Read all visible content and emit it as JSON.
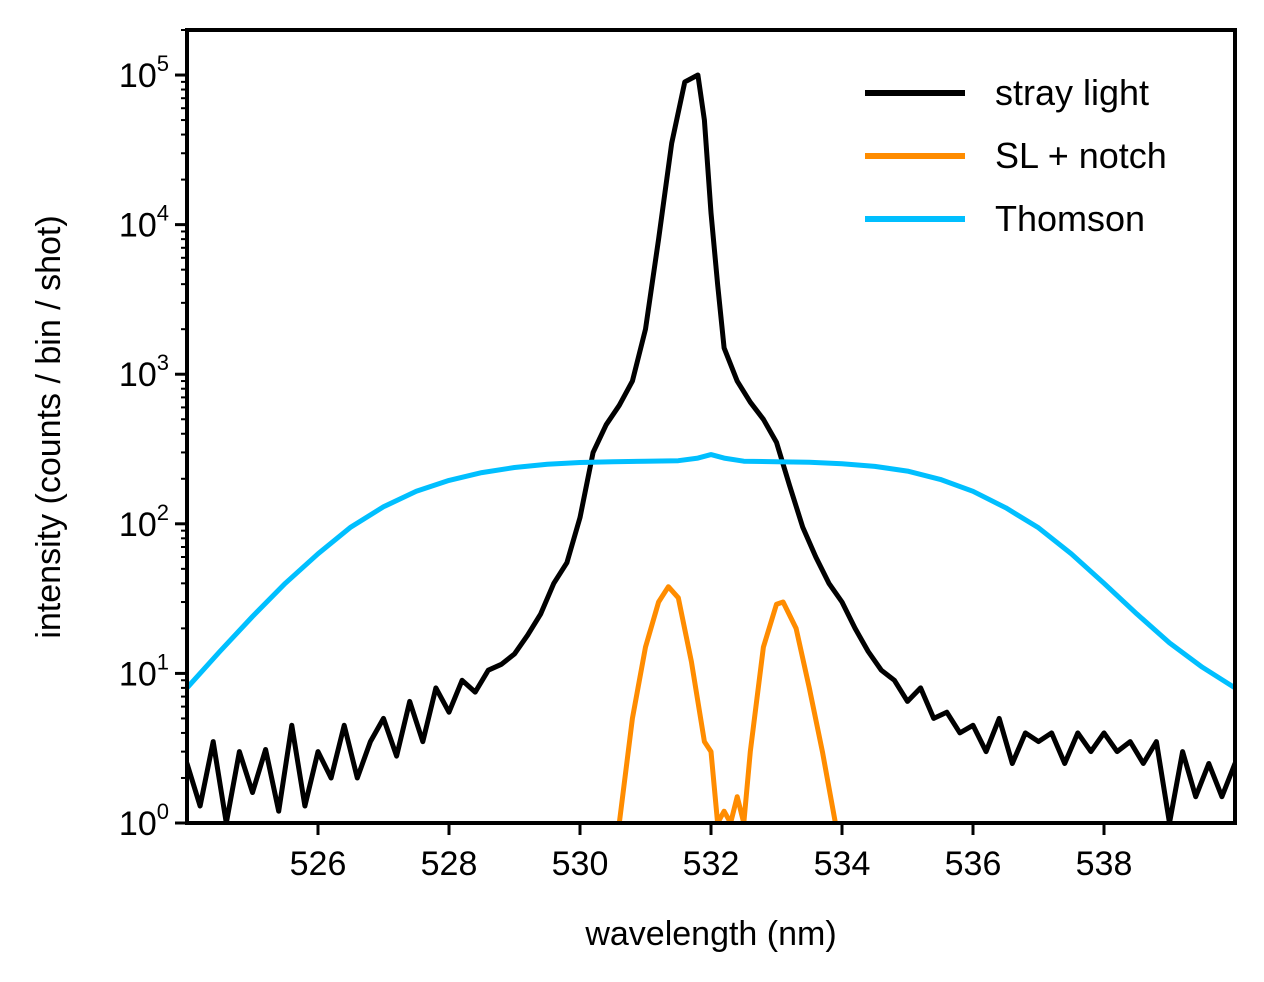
{
  "chart_data": {
    "type": "line",
    "title": "",
    "xlabel": "wavelength (nm)",
    "ylabel": "intensity (counts / bin / shot)",
    "xlim": [
      524.0,
      540.0
    ],
    "ylim": [
      1,
      200000
    ],
    "yscale": "log",
    "grid": false,
    "legend_position": "top-right",
    "xticks": [
      526,
      528,
      530,
      532,
      534,
      536,
      538
    ],
    "xtick_labels": [
      "526",
      "528",
      "530",
      "532",
      "534",
      "536",
      "538"
    ],
    "yticks": [
      1,
      10,
      100,
      1000,
      10000,
      100000
    ],
    "ytick_labels": [
      {
        "base": "10",
        "exp": "0"
      },
      {
        "base": "10",
        "exp": "1"
      },
      {
        "base": "10",
        "exp": "2"
      },
      {
        "base": "10",
        "exp": "3"
      },
      {
        "base": "10",
        "exp": "4"
      },
      {
        "base": "10",
        "exp": "5"
      }
    ],
    "series": [
      {
        "name": "stray light",
        "color": "#000000",
        "x": [
          524.0,
          524.2,
          524.4,
          524.6,
          524.8,
          525.0,
          525.2,
          525.4,
          525.6,
          525.8,
          526.0,
          526.2,
          526.4,
          526.6,
          526.8,
          527.0,
          527.2,
          527.4,
          527.6,
          527.8,
          528.0,
          528.2,
          528.4,
          528.6,
          528.8,
          529.0,
          529.2,
          529.4,
          529.6,
          529.8,
          530.0,
          530.2,
          530.4,
          530.6,
          530.8,
          531.0,
          531.2,
          531.4,
          531.6,
          531.8,
          531.9,
          532.0,
          532.1,
          532.2,
          532.4,
          532.6,
          532.8,
          533.0,
          533.2,
          533.4,
          533.6,
          533.8,
          534.0,
          534.2,
          534.4,
          534.6,
          534.8,
          535.0,
          535.2,
          535.4,
          535.6,
          535.8,
          536.0,
          536.2,
          536.4,
          536.6,
          536.8,
          537.0,
          537.2,
          537.4,
          537.6,
          537.8,
          538.0,
          538.2,
          538.4,
          538.6,
          538.8,
          539.0,
          539.2,
          539.4,
          539.6,
          539.8,
          540.0
        ],
        "y": [
          2.5,
          1.3,
          3.5,
          1.0,
          3.0,
          1.6,
          3.1,
          1.2,
          4.5,
          1.3,
          3.0,
          2.0,
          4.5,
          2.0,
          3.5,
          5.0,
          2.8,
          6.5,
          3.5,
          8.0,
          5.5,
          9.0,
          7.5,
          10.5,
          11.5,
          13.5,
          18.0,
          25.0,
          40.0,
          55.0,
          110.0,
          300.0,
          460.0,
          620.0,
          900.0,
          2000.0,
          8000.0,
          35000.0,
          90000.0,
          100000.0,
          50000.0,
          12000.0,
          4000.0,
          1500.0,
          900.0,
          650.0,
          500.0,
          350.0,
          180.0,
          95.0,
          60.0,
          40.0,
          30.0,
          20.0,
          14.0,
          10.5,
          9.0,
          6.5,
          8.0,
          5.0,
          5.5,
          4.0,
          4.5,
          3.0,
          5.0,
          2.5,
          4.0,
          3.5,
          4.0,
          2.5,
          4.0,
          3.0,
          4.0,
          3.0,
          3.5,
          2.5,
          3.5,
          1.0,
          3.0,
          1.5,
          2.5,
          1.5,
          2.5
        ]
      },
      {
        "name": "SL + notch",
        "color": "#ff8c00",
        "x": [
          530.6,
          530.8,
          531.0,
          531.2,
          531.35,
          531.5,
          531.7,
          531.9,
          532.0,
          532.1,
          532.2,
          532.3,
          532.4,
          532.5,
          532.6,
          532.8,
          533.0,
          533.1,
          533.3,
          533.5,
          533.7,
          533.9
        ],
        "y": [
          1.0,
          5.0,
          15.0,
          30.0,
          38.0,
          32.0,
          12.0,
          3.5,
          3.0,
          1.0,
          1.2,
          1.0,
          1.5,
          1.0,
          3.0,
          15.0,
          29.0,
          30.0,
          20.0,
          8.0,
          3.0,
          1.0
        ]
      },
      {
        "name": "Thomson",
        "color": "#00bfff",
        "x": [
          524.0,
          524.5,
          525.0,
          525.5,
          526.0,
          526.5,
          527.0,
          527.5,
          528.0,
          528.5,
          529.0,
          529.5,
          530.0,
          530.5,
          531.0,
          531.5,
          531.8,
          532.0,
          532.2,
          532.5,
          533.0,
          533.5,
          534.0,
          534.5,
          535.0,
          535.5,
          536.0,
          536.5,
          537.0,
          537.5,
          538.0,
          538.5,
          539.0,
          539.5,
          540.0
        ],
        "y": [
          8.0,
          14.0,
          24.0,
          40.0,
          63.0,
          95.0,
          130.0,
          165.0,
          195.0,
          220.0,
          238.0,
          250.0,
          257.0,
          260.0,
          262.0,
          264.0,
          275.0,
          290.0,
          275.0,
          262.0,
          260.0,
          258.0,
          252.0,
          242.0,
          225.0,
          198.0,
          165.0,
          128.0,
          94.0,
          63.0,
          40.0,
          25.0,
          16.0,
          11.0,
          8.0
        ]
      }
    ]
  }
}
